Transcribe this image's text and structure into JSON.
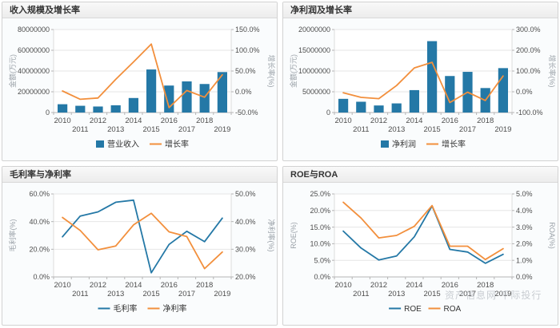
{
  "page": {
    "watermark": "资产信息网 千际投行"
  },
  "colors": {
    "bar_blue": "#2478A6",
    "line_orange": "#F28F3C",
    "line_blue": "#2478A6",
    "grid": "#e6e6e6",
    "plot_border": "#dcdcdc",
    "axis_line": "#b5b5b5",
    "tick_text": "#4d4d4d",
    "axis_title_text": "#9aa1a8",
    "legend_text": "#333333"
  },
  "panels": [
    {
      "title": "收入规模及增长率"
    },
    {
      "title": "净利润及增长率"
    },
    {
      "title": "毛利率与净利率"
    },
    {
      "title": "ROE与ROA"
    }
  ],
  "chart_data": [
    {
      "type": "bar+line",
      "title": "收入规模及增长率",
      "categories": [
        "2010",
        "2011",
        "2012",
        "2013",
        "2014",
        "2015",
        "2016",
        "2017",
        "2018",
        "2019"
      ],
      "series": [
        {
          "name": "营业收入",
          "type": "bar",
          "axis": "left",
          "color": "#2478A6",
          "values": [
            8000000,
            6500000,
            5800000,
            7000000,
            14000000,
            41500000,
            26000000,
            30000000,
            27500000,
            39000000
          ]
        },
        {
          "name": "增长率",
          "type": "line",
          "axis": "right",
          "color": "#F28F3C",
          "values": [
            2,
            -18,
            -15,
            30,
            72,
            115,
            -38,
            3,
            -13,
            41
          ]
        }
      ],
      "left_axis": {
        "label": "金额(万元)",
        "min": 0,
        "max": 80000000,
        "step": 20000000,
        "format": "int"
      },
      "right_axis": {
        "label": "增长率(%)",
        "min": -50,
        "max": 150,
        "step": 50,
        "format": "pct1"
      },
      "grid": true,
      "legend_position": "bottom"
    },
    {
      "type": "bar+line",
      "title": "净利润及增长率",
      "categories": [
        "2010",
        "2011",
        "2012",
        "2013",
        "2014",
        "2015",
        "2016",
        "2017",
        "2018",
        "2019"
      ],
      "series": [
        {
          "name": "净利润",
          "type": "bar",
          "axis": "left",
          "color": "#2478A6",
          "values": [
            3300000,
            2600000,
            1700000,
            2200000,
            5400000,
            17200000,
            8800000,
            9800000,
            5900000,
            10700000
          ]
        },
        {
          "name": "增长率",
          "type": "line",
          "axis": "right",
          "color": "#F28F3C",
          "values": [
            -5,
            -27,
            -33,
            30,
            115,
            142,
            -52,
            -2,
            -42,
            76
          ]
        }
      ],
      "left_axis": {
        "label": "金额(万元)",
        "min": 0,
        "max": 20000000,
        "step": 5000000,
        "format": "int"
      },
      "right_axis": {
        "label": "增长率(%)",
        "min": -100,
        "max": 300,
        "step": 100,
        "format": "pct1"
      },
      "grid": true,
      "legend_position": "bottom"
    },
    {
      "type": "line",
      "title": "毛利率与净利率",
      "categories": [
        "2010",
        "2011",
        "2012",
        "2013",
        "2014",
        "2015",
        "2016",
        "2017",
        "2018",
        "2019"
      ],
      "series": [
        {
          "name": "毛利率",
          "type": "line",
          "axis": "left",
          "color": "#2478A6",
          "values": [
            29,
            44,
            47,
            54,
            55.5,
            3,
            23.5,
            33,
            25.5,
            42.5
          ]
        },
        {
          "name": "净利率",
          "type": "line",
          "axis": "right",
          "color": "#F28F3C",
          "values": [
            41.5,
            36.8,
            29.8,
            31.2,
            38.8,
            43,
            36.3,
            34.6,
            23,
            29
          ]
        }
      ],
      "left_axis": {
        "label": "毛利率(%)",
        "min": 0,
        "max": 60,
        "step": 20,
        "format": "pct1"
      },
      "right_axis": {
        "label": "净利率(%)",
        "min": 20,
        "max": 50,
        "step": 10,
        "format": "pct1"
      },
      "grid": true,
      "legend_position": "bottom"
    },
    {
      "type": "line",
      "title": "ROE与ROA",
      "categories": [
        "2010",
        "2011",
        "2012",
        "2013",
        "2014",
        "2015",
        "2016",
        "2017",
        "2018",
        "2019"
      ],
      "series": [
        {
          "name": "ROE",
          "type": "line",
          "axis": "left",
          "color": "#2478A6",
          "values": [
            13.8,
            8.7,
            5.1,
            6.3,
            12.1,
            21.4,
            8.3,
            7.5,
            4.1,
            6.8
          ]
        },
        {
          "name": "ROA",
          "type": "line",
          "axis": "right",
          "color": "#F28F3C",
          "values": [
            4.5,
            3.55,
            2.35,
            2.5,
            3.05,
            4.3,
            1.85,
            1.85,
            1.05,
            1.7
          ]
        }
      ],
      "left_axis": {
        "label": "ROE(%)",
        "min": 0,
        "max": 25,
        "step": 5,
        "format": "pct1"
      },
      "right_axis": {
        "label": "ROA(%)",
        "min": 0,
        "max": 5,
        "step": 1,
        "format": "pct1"
      },
      "grid": true,
      "legend_position": "bottom"
    }
  ]
}
